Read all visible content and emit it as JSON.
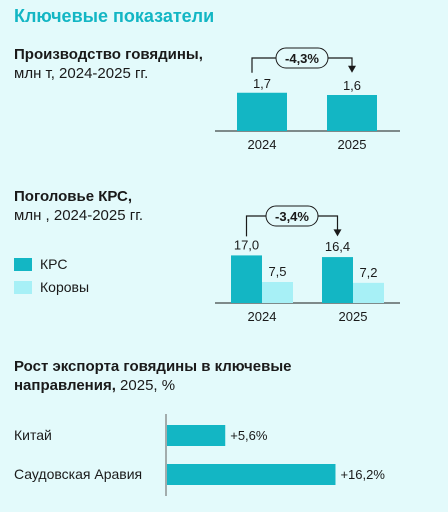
{
  "page_title": "Ключевые показатели",
  "colors": {
    "accent": "#13b6c4",
    "light": "#a7f0f6",
    "background": "#e3fafb",
    "text": "#1a1a1a"
  },
  "chart_data": [
    {
      "type": "bar",
      "title": "Производство говядины,",
      "subtitle": "млн т, 2024-2025 гг.",
      "categories": [
        "2024",
        "2025"
      ],
      "values": [
        1.7,
        1.6
      ],
      "value_labels": [
        "1,7",
        "1,6"
      ],
      "change_label": "-4,3%"
    },
    {
      "type": "bar",
      "title": "Поголовье КРС,",
      "subtitle": "млн , 2024-2025 гг.",
      "categories": [
        "2024",
        "2025"
      ],
      "series": [
        {
          "name": "КРС",
          "values": [
            17.0,
            16.4
          ],
          "value_labels": [
            "17,0",
            "16,4"
          ]
        },
        {
          "name": "Коровы",
          "values": [
            7.5,
            7.2
          ],
          "value_labels": [
            "7,5",
            "7,2"
          ]
        }
      ],
      "change_label": "-3,4%"
    },
    {
      "type": "bar",
      "orientation": "horizontal",
      "title": "Рост экспорта говядины в ключевые направления,",
      "title_line1": "Рост экспорта говядины в ключевые",
      "title_line2": "направления,",
      "subtitle": "2025, %",
      "categories": [
        "Китай",
        "Саудовская Аравия"
      ],
      "values": [
        5.6,
        16.2
      ],
      "value_labels": [
        "+5,6%",
        "+16,2%"
      ]
    }
  ]
}
